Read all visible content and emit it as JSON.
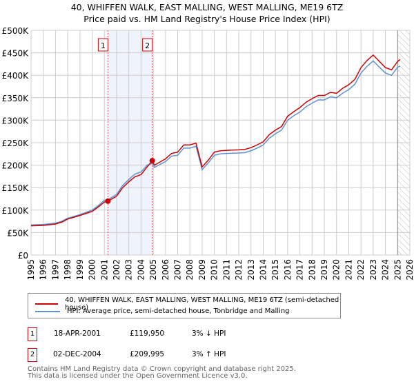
{
  "title": "40, WHIFFEN WALK, EAST MALLING, WEST MALLING, ME19 6TZ",
  "subtitle": "Price paid vs. HM Land Registry's House Price Index (HPI)",
  "chart_data": {
    "type": "line",
    "xlim": [
      1995,
      2026
    ],
    "ylim": [
      0,
      500000
    ],
    "y_ticks": [
      0,
      50000,
      100000,
      150000,
      200000,
      250000,
      300000,
      350000,
      400000,
      450000,
      500000
    ],
    "y_tick_labels": [
      "£0",
      "£50K",
      "£100K",
      "£150K",
      "£200K",
      "£250K",
      "£300K",
      "£350K",
      "£400K",
      "£450K",
      "£500K"
    ],
    "x_ticks": [
      1995,
      1996,
      1997,
      1998,
      1999,
      2000,
      2001,
      2002,
      2003,
      2004,
      2005,
      2006,
      2007,
      2008,
      2009,
      2010,
      2011,
      2012,
      2013,
      2014,
      2015,
      2016,
      2017,
      2018,
      2019,
      2020,
      2021,
      2022,
      2023,
      2024,
      2025,
      2026
    ],
    "grid": true,
    "shaded_period": [
      2001.29,
      2004.92
    ],
    "forecast_hatch_from": 2025.0,
    "x": [
      1995,
      1996,
      1997,
      1997.5,
      1998,
      1999,
      2000,
      2000.5,
      2001,
      2001.3,
      2002,
      2002.5,
      2003,
      2003.5,
      2004,
      2004.5,
      2004.92,
      2005.1,
      2006,
      2006.5,
      2007,
      2007.5,
      2008,
      2008.5,
      2009,
      2009.5,
      2010,
      2010.5,
      2011,
      2012,
      2012.5,
      2013,
      2013.5,
      2014,
      2014.5,
      2015,
      2015.5,
      2016,
      2016.5,
      2017,
      2017.5,
      2018,
      2018.5,
      2019,
      2019.5,
      2020,
      2020.5,
      2021,
      2021.5,
      2022,
      2022.5,
      2023,
      2023.5,
      2024,
      2024.5,
      2025,
      2025.2
    ],
    "series": [
      {
        "name": "40, WHIFFEN WALK, EAST MALLING, WEST MALLING, ME19 6TZ (semi-detached house)",
        "color": "#cc0000",
        "values": [
          65000,
          66000,
          69000,
          73000,
          80000,
          88000,
          97000,
          107000,
          118000,
          119950,
          131000,
          150000,
          163000,
          174000,
          179000,
          196000,
          209995,
          200000,
          214000,
          226000,
          229000,
          245000,
          245000,
          249000,
          196000,
          211000,
          229000,
          232000,
          233000,
          234000,
          235000,
          239000,
          245000,
          252000,
          268000,
          278000,
          286000,
          309000,
          319000,
          328000,
          340000,
          348000,
          355000,
          355000,
          362000,
          360000,
          371000,
          379000,
          391000,
          417000,
          433000,
          445000,
          431000,
          417000,
          412000,
          431000,
          435000
        ]
      },
      {
        "name": "HPI: Average price, semi-detached house, Tonbridge and Malling",
        "color": "#6090d0",
        "values": [
          67000,
          68000,
          71000,
          75000,
          82000,
          90000,
          100000,
          110000,
          122000,
          123000,
          135000,
          155000,
          168000,
          180000,
          185000,
          200000,
          204000,
          195000,
          208000,
          220000,
          222000,
          238000,
          238000,
          242000,
          190000,
          205000,
          222000,
          225000,
          226000,
          227000,
          228000,
          232000,
          238000,
          245000,
          260000,
          270000,
          278000,
          300000,
          310000,
          318000,
          330000,
          338000,
          345000,
          345000,
          352000,
          350000,
          360000,
          368000,
          380000,
          405000,
          420000,
          432000,
          418000,
          405000,
          400000,
          418000,
          420000
        ]
      }
    ],
    "sales": [
      {
        "label": "1",
        "x": 2001.29,
        "price": 119950
      },
      {
        "label": "2",
        "x": 2004.92,
        "price": 209995
      }
    ]
  },
  "legend": {
    "red": "40, WHIFFEN WALK, EAST MALLING, WEST MALLING, ME19 6TZ (semi-detached house)",
    "blue": "HPI: Average price, semi-detached house, Tonbridge and Malling"
  },
  "transactions": [
    {
      "num": "1",
      "date": "18-APR-2001",
      "price": "£119,950",
      "hpi": "3% ↓ HPI"
    },
    {
      "num": "2",
      "date": "02-DEC-2004",
      "price": "£209,995",
      "hpi": "3% ↑ HPI"
    }
  ],
  "footer": {
    "line1": "Contains HM Land Registry data © Crown copyright and database right 2025.",
    "line2": "This data is licensed under the Open Government Licence v3.0."
  }
}
